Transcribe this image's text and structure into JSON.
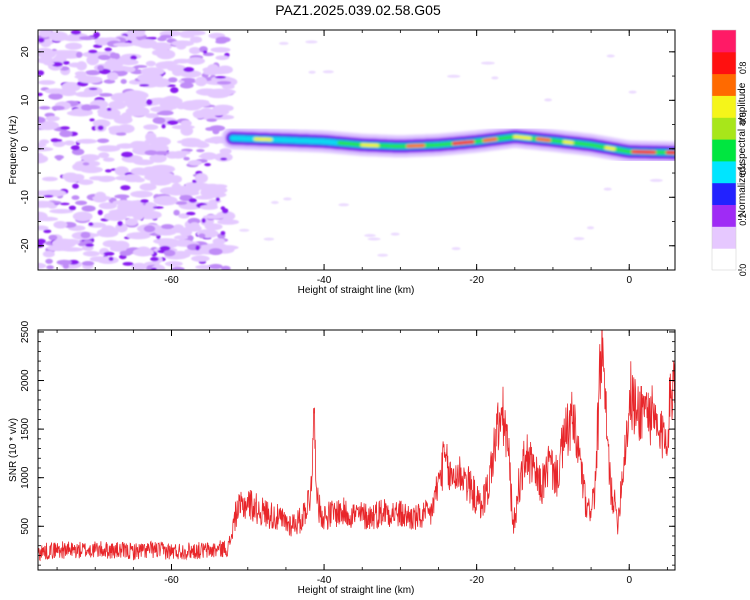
{
  "title": "PAZ1.2025.039.02.58.G05",
  "chart_data": [
    {
      "type": "heatmap",
      "title": "PAZ1.2025.039.02.58.G05",
      "xlabel": "Height of straight line (km)",
      "ylabel": "Frequency (Hz)",
      "xlim": [
        -77.5,
        6
      ],
      "ylim": [
        -25,
        24.5
      ],
      "x_ticks": [
        -60,
        -40,
        -20,
        0
      ],
      "y_ticks": [
        -20,
        -10,
        0,
        10,
        20
      ],
      "noise_region_x": [
        -77.5,
        -52.5
      ],
      "tone_track": {
        "x": [
          -52,
          -45,
          -40,
          -35,
          -30,
          -25,
          -20,
          -15,
          -10,
          -5,
          0,
          6
        ],
        "y": [
          2.2,
          1.8,
          1.5,
          0.8,
          0.5,
          0.8,
          1.5,
          2.5,
          1.7,
          0.8,
          -0.6,
          -0.8
        ]
      },
      "colorbar": {
        "label": "Normalized spectral amplitude",
        "range": [
          0,
          0.95
        ],
        "ticks": [
          0.0,
          0.2,
          0.4,
          0.6,
          0.8
        ],
        "tick_labels": [
          "0.0",
          "0.2",
          "0.4",
          "0.6",
          "0.8"
        ],
        "colors": [
          "#ffffff",
          "#e6c8ff",
          "#9f2bf5",
          "#2222ff",
          "#00e5ff",
          "#00e640",
          "#a8e61a",
          "#f5f51a",
          "#ff6a00",
          "#ff1010",
          "#ff1a66"
        ]
      }
    },
    {
      "type": "line",
      "xlabel": "Height of straight line (km)",
      "ylabel": "SNR (10 * v/v)",
      "xlim": [
        -77.5,
        6
      ],
      "ylim": [
        50,
        2520
      ],
      "x_ticks": [
        -60,
        -40,
        -20,
        0
      ],
      "y_ticks": [
        500,
        1000,
        1500,
        2000,
        2500
      ],
      "color": "#e8262a",
      "series": [
        {
          "x": [
            -77.5,
            -75,
            -72.5,
            -70,
            -67.5,
            -65,
            -62.5,
            -60,
            -57.5,
            -55,
            -52.5,
            -51.5,
            -50,
            -48.5,
            -47,
            -46,
            -44.5,
            -43,
            -41.8,
            -41.3,
            -40.8,
            -40,
            -38,
            -36,
            -34,
            -32,
            -30,
            -28,
            -26,
            -24.2,
            -23.5,
            -22,
            -20.5,
            -19.5,
            -18.5,
            -17.3,
            -16.5,
            -15.8,
            -15.2,
            -14.5,
            -13.5,
            -12.5,
            -11.5,
            -10.5,
            -9.5,
            -8.5,
            -7.5,
            -6.5,
            -5.5,
            -4.5,
            -3.6,
            -3.2,
            -2.5,
            -1.5,
            -0.5,
            0.2,
            1,
            2,
            3,
            4,
            5,
            6
          ],
          "y": [
            230,
            260,
            250,
            260,
            250,
            240,
            260,
            240,
            250,
            250,
            280,
            650,
            750,
            660,
            620,
            580,
            520,
            560,
            820,
            1600,
            700,
            600,
            650,
            620,
            600,
            660,
            620,
            580,
            630,
            1200,
            1000,
            1050,
            850,
            700,
            900,
            1500,
            1620,
            1250,
            460,
            900,
            1250,
            1050,
            900,
            1150,
            1000,
            1400,
            1600,
            1200,
            600,
            850,
            2420,
            1800,
            950,
            550,
            1350,
            1850,
            1650,
            1750,
            1620,
            1400,
            1500,
            2200
          ]
        }
      ]
    }
  ]
}
